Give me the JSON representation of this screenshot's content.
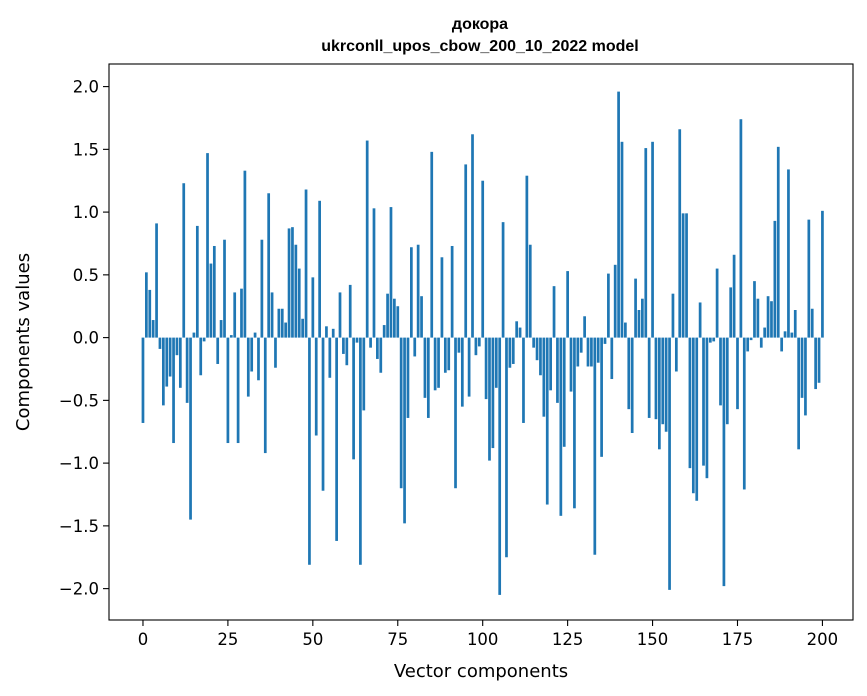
{
  "chart_data": {
    "type": "bar",
    "title_line1": "докора",
    "title_line2": "ukrconll_upos_cbow_200_10_2022 model",
    "xlabel": "Vector components",
    "ylabel": "Components values",
    "xlim": [
      -10,
      209
    ],
    "ylim": [
      -2.25,
      2.18
    ],
    "xticks": [
      0,
      25,
      50,
      75,
      100,
      125,
      150,
      175,
      200
    ],
    "xtick_labels": [
      "0",
      "25",
      "50",
      "75",
      "100",
      "125",
      "150",
      "175",
      "200"
    ],
    "yticks": [
      2.0,
      1.5,
      1.0,
      0.5,
      0.0,
      -0.5,
      -1.0,
      -1.5,
      -2.0
    ],
    "ytick_labels": [
      "2.0",
      "1.5",
      "1.0",
      "0.5",
      "0.0",
      "−0.5",
      "−1.0",
      "−1.5",
      "−2.0"
    ],
    "grid": false,
    "bar_color": "#1f77b4",
    "values": [
      -0.68,
      0.52,
      0.38,
      0.14,
      0.91,
      -0.09,
      -0.54,
      -0.39,
      -0.31,
      -0.84,
      -0.14,
      -0.4,
      1.23,
      -0.52,
      -1.45,
      0.04,
      0.89,
      -0.3,
      -0.03,
      1.47,
      0.59,
      0.73,
      -0.21,
      0.14,
      0.78,
      -0.84,
      0.02,
      0.36,
      -0.84,
      0.39,
      1.33,
      -0.47,
      -0.27,
      0.04,
      -0.34,
      0.78,
      -0.92,
      1.15,
      0.36,
      -0.24,
      0.23,
      0.23,
      0.12,
      0.87,
      0.88,
      0.74,
      0.55,
      0.15,
      1.18,
      -1.81,
      0.48,
      -0.78,
      1.09,
      -1.22,
      0.09,
      -0.32,
      0.07,
      -1.62,
      0.36,
      -0.13,
      -0.22,
      0.42,
      -0.97,
      -0.04,
      -1.81,
      -0.58,
      1.57,
      -0.08,
      1.03,
      -0.17,
      -0.28,
      0.1,
      0.35,
      1.04,
      0.31,
      0.25,
      -1.2,
      -1.48,
      -0.64,
      0.72,
      -0.15,
      0.74,
      0.33,
      -0.48,
      -0.64,
      1.48,
      -0.42,
      -0.4,
      0.64,
      -0.28,
      -0.26,
      0.73,
      -1.2,
      -0.12,
      -0.55,
      1.38,
      -0.47,
      1.62,
      -0.14,
      -0.07,
      1.25,
      -0.49,
      -0.98,
      -0.88,
      -0.4,
      -2.05,
      0.92,
      -1.75,
      -0.24,
      -0.21,
      0.13,
      0.08,
      -0.68,
      1.29,
      0.74,
      -0.08,
      -0.18,
      -0.3,
      -0.63,
      -1.33,
      -0.42,
      0.41,
      -0.52,
      -1.42,
      -0.87,
      0.53,
      -0.43,
      -1.36,
      -0.23,
      -0.12,
      0.17,
      -0.23,
      -0.23,
      -1.73,
      -0.2,
      -0.95,
      -0.05,
      0.51,
      -0.33,
      0.58,
      1.96,
      1.56,
      0.12,
      -0.57,
      -0.76,
      0.47,
      0.22,
      0.31,
      1.51,
      -0.64,
      1.56,
      -0.65,
      -0.89,
      -0.69,
      -0.75,
      -2.01,
      0.35,
      -0.27,
      1.66,
      0.99,
      0.99,
      -1.04,
      -1.24,
      -1.3,
      0.28,
      -1.02,
      -1.12,
      -0.04,
      -0.03,
      0.55,
      -0.54,
      -1.98,
      -0.69,
      0.4,
      0.66,
      -0.57,
      1.74,
      -1.21,
      -0.11,
      -0.02,
      0.45,
      0.31,
      -0.08,
      0.08,
      0.33,
      0.29,
      0.93,
      1.52,
      -0.11,
      0.05,
      1.34,
      0.04,
      0.22,
      -0.89,
      -0.48,
      -0.62,
      0.94,
      0.23,
      -0.41,
      -0.36,
      1.01
    ]
  }
}
